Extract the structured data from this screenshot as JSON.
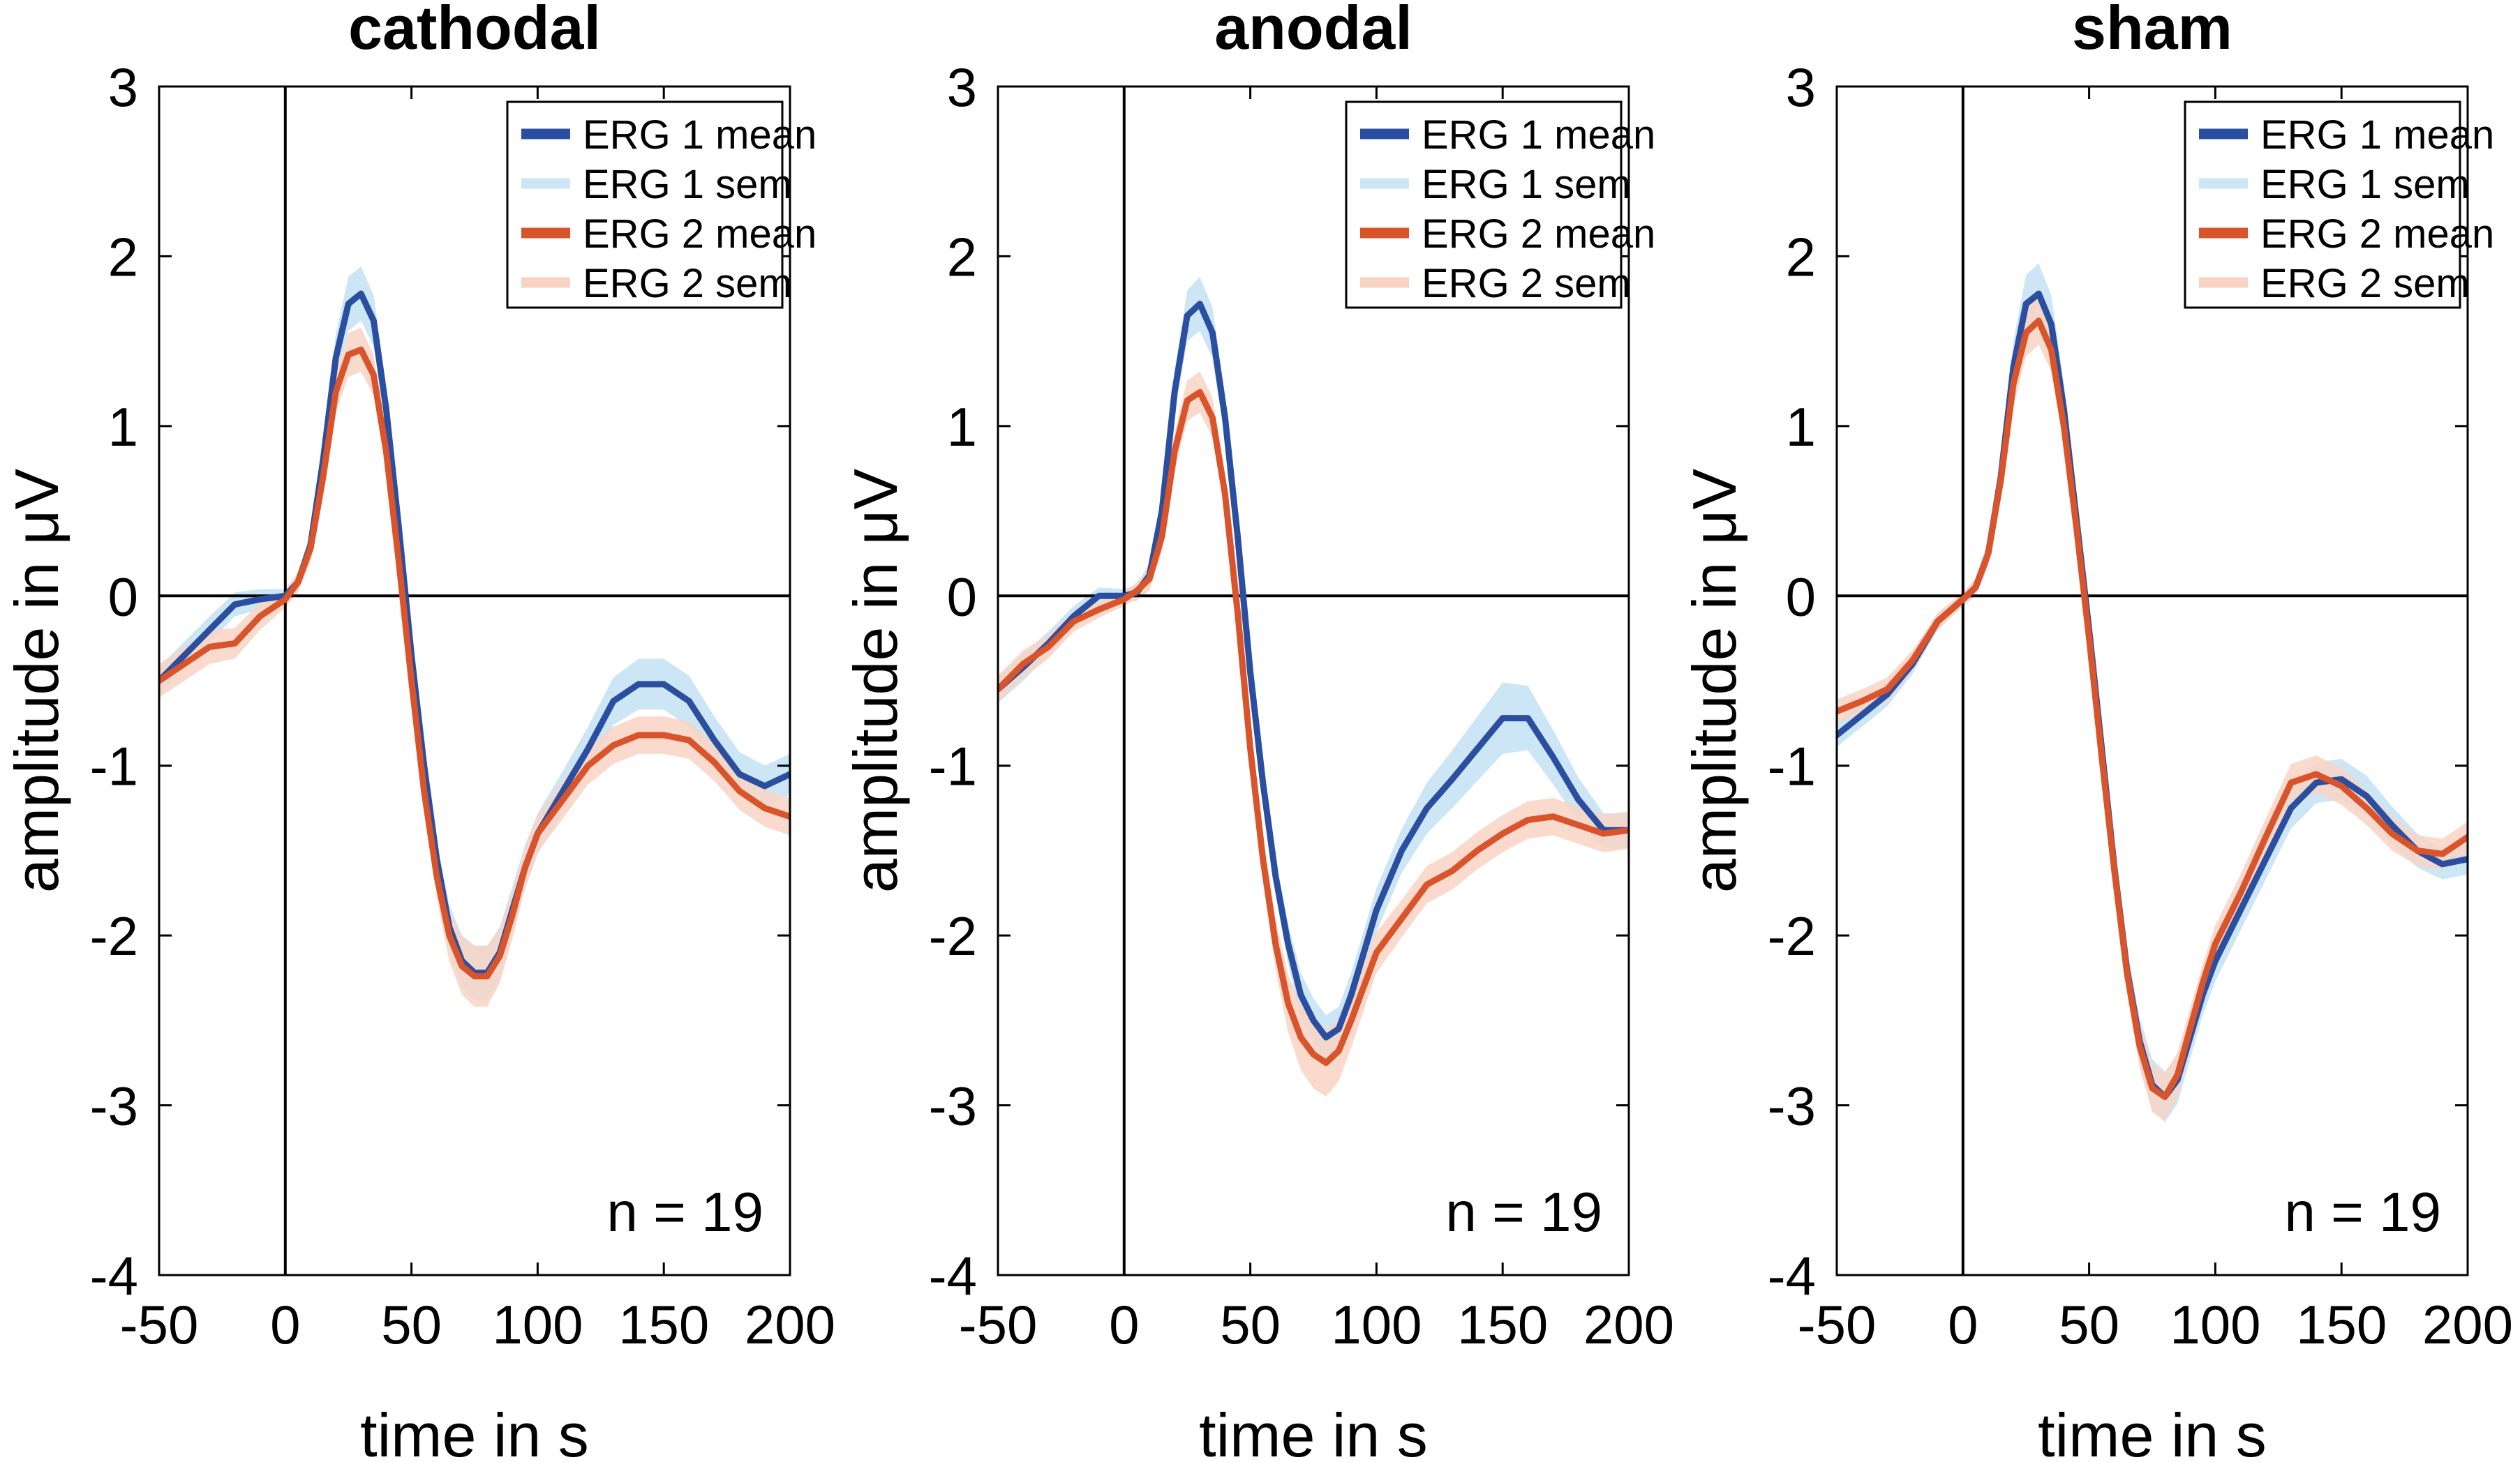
{
  "colors": {
    "erg1_mean": "#2a4fa0",
    "erg1_sem": "#cde6f5",
    "erg2_mean": "#d9532b",
    "erg2_sem": "#f8d3c4",
    "axis": "#000000",
    "background": "#ffffff"
  },
  "chart_data": [
    {
      "type": "line",
      "title": "cathodal",
      "xlabel": "time in s",
      "ylabel": "amplitude in μV",
      "xlim": [
        -50,
        200
      ],
      "ylim": [
        -4,
        3
      ],
      "xticks": [
        -50,
        0,
        50,
        100,
        150,
        200
      ],
      "yticks": [
        -4,
        -3,
        -2,
        -1,
        0,
        1,
        2,
        3
      ],
      "xtick_labels": [
        "-50",
        "0",
        "50",
        "100",
        "150",
        "200"
      ],
      "ytick_labels": [
        "-4",
        "-3",
        "-2",
        "-1",
        "0",
        "1",
        "2",
        "3"
      ],
      "legend": [
        "ERG 1 mean",
        "ERG 1 sem",
        "ERG 2 mean",
        "ERG 2 sem"
      ],
      "legend_position": "top-right",
      "annotation": "n = 19",
      "reference_lines": {
        "x": 0,
        "y": 0
      },
      "x": [
        -50,
        -40,
        -30,
        -20,
        -10,
        0,
        5,
        10,
        15,
        20,
        25,
        30,
        35,
        40,
        45,
        50,
        55,
        60,
        65,
        70,
        75,
        80,
        85,
        90,
        95,
        100,
        110,
        120,
        130,
        140,
        150,
        160,
        170,
        180,
        190,
        200
      ],
      "series": [
        {
          "name": "ERG 1 mean",
          "values": [
            -0.5,
            -0.35,
            -0.2,
            -0.05,
            -0.02,
            0.0,
            0.08,
            0.3,
            0.8,
            1.4,
            1.72,
            1.78,
            1.62,
            1.1,
            0.4,
            -0.35,
            -1.0,
            -1.55,
            -1.95,
            -2.15,
            -2.22,
            -2.22,
            -2.1,
            -1.85,
            -1.6,
            -1.4,
            -1.15,
            -0.9,
            -0.62,
            -0.52,
            -0.52,
            -0.62,
            -0.85,
            -1.05,
            -1.12,
            -1.05
          ],
          "sem": [
            0.08,
            0.08,
            0.08,
            0.07,
            0.06,
            0.04,
            0.05,
            0.08,
            0.1,
            0.14,
            0.16,
            0.16,
            0.15,
            0.13,
            0.11,
            0.1,
            0.1,
            0.11,
            0.13,
            0.15,
            0.16,
            0.16,
            0.15,
            0.14,
            0.13,
            0.12,
            0.12,
            0.13,
            0.14,
            0.15,
            0.15,
            0.15,
            0.14,
            0.13,
            0.12,
            0.12
          ]
        },
        {
          "name": "ERG 2 mean",
          "values": [
            -0.5,
            -0.4,
            -0.3,
            -0.28,
            -0.12,
            -0.02,
            0.08,
            0.28,
            0.7,
            1.2,
            1.42,
            1.45,
            1.3,
            0.85,
            0.2,
            -0.5,
            -1.15,
            -1.65,
            -2.0,
            -2.18,
            -2.24,
            -2.24,
            -2.12,
            -1.88,
            -1.6,
            -1.4,
            -1.2,
            -1.0,
            -0.88,
            -0.82,
            -0.82,
            -0.85,
            -0.98,
            -1.15,
            -1.25,
            -1.3
          ],
          "sem": [
            0.1,
            0.1,
            0.1,
            0.09,
            0.08,
            0.05,
            0.06,
            0.08,
            0.1,
            0.12,
            0.13,
            0.13,
            0.12,
            0.11,
            0.1,
            0.1,
            0.11,
            0.13,
            0.15,
            0.17,
            0.18,
            0.18,
            0.16,
            0.14,
            0.12,
            0.11,
            0.11,
            0.11,
            0.11,
            0.11,
            0.11,
            0.11,
            0.11,
            0.11,
            0.11,
            0.11
          ]
        }
      ]
    },
    {
      "type": "line",
      "title": "anodal",
      "xlabel": "time in s",
      "ylabel": "amplitude in μV",
      "xlim": [
        -50,
        200
      ],
      "ylim": [
        -4,
        3
      ],
      "xticks": [
        -50,
        0,
        50,
        100,
        150,
        200
      ],
      "yticks": [
        -4,
        -3,
        -2,
        -1,
        0,
        1,
        2,
        3
      ],
      "xtick_labels": [
        "-50",
        "0",
        "50",
        "100",
        "150",
        "200"
      ],
      "ytick_labels": [
        "-4",
        "-3",
        "-2",
        "-1",
        "0",
        "1",
        "2",
        "3"
      ],
      "legend": [
        "ERG 1 mean",
        "ERG 1 sem",
        "ERG 2 mean",
        "ERG 2 sem"
      ],
      "legend_position": "top-right",
      "annotation": "n = 19",
      "reference_lines": {
        "x": 0,
        "y": 0
      },
      "x": [
        -50,
        -40,
        -30,
        -20,
        -10,
        0,
        5,
        10,
        15,
        20,
        25,
        30,
        35,
        40,
        45,
        50,
        55,
        60,
        65,
        70,
        75,
        80,
        85,
        90,
        95,
        100,
        110,
        120,
        130,
        140,
        150,
        160,
        170,
        180,
        190,
        200
      ],
      "series": [
        {
          "name": "ERG 1 mean",
          "values": [
            -0.55,
            -0.42,
            -0.28,
            -0.12,
            0.0,
            0.0,
            0.02,
            0.12,
            0.5,
            1.2,
            1.65,
            1.72,
            1.55,
            1.05,
            0.35,
            -0.45,
            -1.1,
            -1.65,
            -2.05,
            -2.35,
            -2.5,
            -2.6,
            -2.55,
            -2.35,
            -2.1,
            -1.85,
            -1.5,
            -1.25,
            -1.08,
            -0.9,
            -0.72,
            -0.72,
            -0.95,
            -1.2,
            -1.38,
            -1.38
          ],
          "sem": [
            0.08,
            0.08,
            0.07,
            0.06,
            0.05,
            0.04,
            0.05,
            0.07,
            0.1,
            0.13,
            0.15,
            0.16,
            0.15,
            0.13,
            0.11,
            0.1,
            0.1,
            0.11,
            0.12,
            0.13,
            0.13,
            0.13,
            0.13,
            0.13,
            0.13,
            0.13,
            0.13,
            0.15,
            0.17,
            0.19,
            0.21,
            0.19,
            0.16,
            0.13,
            0.1,
            0.1
          ]
        },
        {
          "name": "ERG 2 mean",
          "values": [
            -0.55,
            -0.4,
            -0.3,
            -0.15,
            -0.08,
            -0.02,
            0.03,
            0.1,
            0.35,
            0.85,
            1.15,
            1.2,
            1.05,
            0.6,
            -0.1,
            -0.9,
            -1.55,
            -2.05,
            -2.4,
            -2.6,
            -2.7,
            -2.75,
            -2.68,
            -2.5,
            -2.3,
            -2.1,
            -1.9,
            -1.7,
            -1.62,
            -1.5,
            -1.4,
            -1.32,
            -1.3,
            -1.35,
            -1.4,
            -1.38
          ],
          "sem": [
            0.08,
            0.08,
            0.07,
            0.06,
            0.05,
            0.04,
            0.05,
            0.07,
            0.09,
            0.11,
            0.12,
            0.12,
            0.12,
            0.11,
            0.11,
            0.12,
            0.13,
            0.15,
            0.17,
            0.19,
            0.2,
            0.2,
            0.18,
            0.16,
            0.14,
            0.12,
            0.11,
            0.11,
            0.11,
            0.11,
            0.11,
            0.11,
            0.11,
            0.11,
            0.11,
            0.11
          ]
        }
      ]
    },
    {
      "type": "line",
      "title": "sham",
      "xlabel": "time in s",
      "ylabel": "amplitude in μV",
      "xlim": [
        -50,
        200
      ],
      "ylim": [
        -4,
        3
      ],
      "xticks": [
        -50,
        0,
        50,
        100,
        150,
        200
      ],
      "yticks": [
        -4,
        -3,
        -2,
        -1,
        0,
        1,
        2,
        3
      ],
      "xtick_labels": [
        "-50",
        "0",
        "50",
        "100",
        "150",
        "200"
      ],
      "ytick_labels": [
        "-4",
        "-3",
        "-2",
        "-1",
        "0",
        "1",
        "2",
        "3"
      ],
      "legend": [
        "ERG 1 mean",
        "ERG 1 sem",
        "ERG 2 mean",
        "ERG 2 sem"
      ],
      "legend_position": "top-right",
      "annotation": "n = 19",
      "reference_lines": {
        "x": 0,
        "y": 0
      },
      "x": [
        -50,
        -40,
        -30,
        -20,
        -10,
        0,
        5,
        10,
        15,
        20,
        25,
        30,
        35,
        40,
        45,
        50,
        55,
        60,
        65,
        70,
        75,
        80,
        85,
        90,
        95,
        100,
        110,
        120,
        130,
        140,
        150,
        160,
        170,
        180,
        190,
        200
      ],
      "series": [
        {
          "name": "ERG 1 mean",
          "values": [
            -0.82,
            -0.7,
            -0.58,
            -0.4,
            -0.15,
            -0.02,
            0.05,
            0.25,
            0.7,
            1.35,
            1.72,
            1.78,
            1.6,
            1.1,
            0.45,
            -0.2,
            -0.9,
            -1.6,
            -2.2,
            -2.62,
            -2.88,
            -2.95,
            -2.85,
            -2.6,
            -2.35,
            -2.15,
            -1.85,
            -1.55,
            -1.25,
            -1.1,
            -1.08,
            -1.18,
            -1.35,
            -1.5,
            -1.58,
            -1.55
          ],
          "sem": [
            0.07,
            0.07,
            0.07,
            0.06,
            0.05,
            0.04,
            0.05,
            0.08,
            0.11,
            0.15,
            0.17,
            0.18,
            0.17,
            0.15,
            0.13,
            0.11,
            0.11,
            0.12,
            0.13,
            0.14,
            0.15,
            0.15,
            0.14,
            0.13,
            0.12,
            0.12,
            0.12,
            0.12,
            0.12,
            0.12,
            0.12,
            0.12,
            0.11,
            0.1,
            0.09,
            0.09
          ]
        },
        {
          "name": "ERG 2 mean",
          "values": [
            -0.68,
            -0.62,
            -0.55,
            -0.38,
            -0.15,
            -0.02,
            0.05,
            0.25,
            0.68,
            1.25,
            1.55,
            1.62,
            1.45,
            1.0,
            0.4,
            -0.25,
            -0.95,
            -1.62,
            -2.22,
            -2.65,
            -2.9,
            -2.95,
            -2.82,
            -2.55,
            -2.28,
            -2.05,
            -1.75,
            -1.42,
            -1.1,
            -1.05,
            -1.12,
            -1.25,
            -1.4,
            -1.5,
            -1.52,
            -1.42
          ],
          "sem": [
            0.07,
            0.07,
            0.07,
            0.06,
            0.05,
            0.04,
            0.05,
            0.07,
            0.1,
            0.13,
            0.14,
            0.14,
            0.13,
            0.12,
            0.11,
            0.1,
            0.1,
            0.11,
            0.12,
            0.13,
            0.14,
            0.14,
            0.13,
            0.12,
            0.11,
            0.11,
            0.11,
            0.11,
            0.11,
            0.11,
            0.11,
            0.1,
            0.1,
            0.09,
            0.09,
            0.09
          ]
        }
      ]
    }
  ]
}
